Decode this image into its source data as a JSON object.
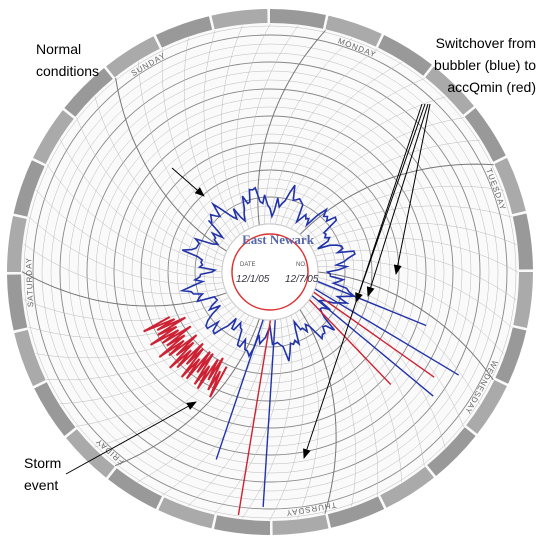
{
  "annotations": {
    "normal": [
      "Normal",
      "conditions"
    ],
    "switchover": [
      "Switchover from",
      "bubbler (blue) to",
      "accQmin (red)"
    ],
    "storm": [
      "Storm",
      "event"
    ]
  },
  "paper": {
    "days": [
      "SUNDAY",
      "MONDAY",
      "TUESDAY",
      "WEDNESDAY",
      "THURSDAY",
      "FRIDAY",
      "SATURDAY"
    ],
    "hub_title": "East Newark",
    "date_label": "DATE",
    "no_label": "NO.",
    "date_value": "12/1/05",
    "no_value": "12/7/05"
  }
}
